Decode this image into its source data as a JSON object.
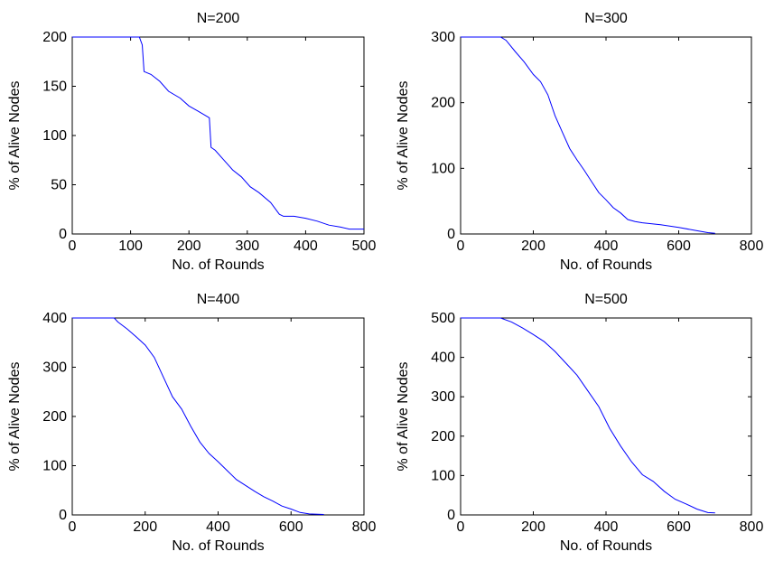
{
  "figure": {
    "background": "#ffffff",
    "line_color": "#0000ff",
    "axis_color": "#000000"
  },
  "chart_data": [
    {
      "type": "line",
      "title": "N=200",
      "xlabel": "No. of Rounds",
      "ylabel": "% of Alive Nodes",
      "xlim": [
        0,
        500
      ],
      "ylim": [
        0,
        200
      ],
      "xticks": [
        0,
        100,
        200,
        300,
        400,
        500
      ],
      "yticks": [
        0,
        50,
        100,
        150,
        200
      ],
      "grid": false,
      "series": [
        {
          "x": [
            0,
            115,
            120,
            123,
            135,
            150,
            165,
            185,
            200,
            215,
            235,
            238,
            245,
            260,
            275,
            290,
            305,
            320,
            340,
            355,
            362,
            380,
            400,
            420,
            440,
            460,
            475,
            500
          ],
          "y": [
            200,
            200,
            192,
            165,
            162,
            155,
            145,
            138,
            130,
            125,
            118,
            88,
            85,
            75,
            65,
            58,
            48,
            42,
            32,
            20,
            18,
            18,
            16,
            13,
            9,
            7,
            5,
            5
          ]
        }
      ]
    },
    {
      "type": "line",
      "title": "N=300",
      "xlabel": "No. of Rounds",
      "ylabel": "% of Alive Nodes",
      "xlim": [
        0,
        800
      ],
      "ylim": [
        0,
        300
      ],
      "xticks": [
        0,
        200,
        400,
        600,
        800
      ],
      "yticks": [
        0,
        100,
        200,
        300
      ],
      "grid": false,
      "series": [
        {
          "x": [
            0,
            110,
            125,
            150,
            175,
            200,
            220,
            240,
            260,
            280,
            300,
            320,
            340,
            360,
            380,
            400,
            420,
            440,
            460,
            480,
            500,
            550,
            600,
            650,
            680,
            700
          ],
          "y": [
            300,
            300,
            295,
            278,
            262,
            243,
            232,
            212,
            180,
            155,
            130,
            113,
            97,
            80,
            63,
            52,
            40,
            32,
            22,
            19,
            17,
            14,
            10,
            5,
            2,
            1
          ]
        }
      ]
    },
    {
      "type": "line",
      "title": "N=400",
      "xlabel": "No. of Rounds",
      "ylabel": "% of Alive Nodes",
      "xlim": [
        0,
        800
      ],
      "ylim": [
        0,
        400
      ],
      "xticks": [
        0,
        200,
        400,
        600,
        800
      ],
      "yticks": [
        0,
        100,
        200,
        300,
        400
      ],
      "grid": false,
      "series": [
        {
          "x": [
            0,
            115,
            125,
            150,
            175,
            200,
            225,
            250,
            275,
            300,
            325,
            350,
            375,
            400,
            425,
            450,
            475,
            500,
            525,
            550,
            575,
            600,
            625,
            650,
            690
          ],
          "y": [
            400,
            400,
            392,
            378,
            362,
            345,
            320,
            280,
            240,
            215,
            180,
            148,
            125,
            108,
            90,
            72,
            60,
            48,
            37,
            28,
            18,
            12,
            5,
            2,
            1
          ]
        }
      ]
    },
    {
      "type": "line",
      "title": "N=500",
      "xlabel": "No. of Rounds",
      "ylabel": "% of Alive Nodes",
      "xlim": [
        0,
        800
      ],
      "ylim": [
        0,
        500
      ],
      "xticks": [
        0,
        200,
        400,
        600,
        800
      ],
      "yticks": [
        0,
        100,
        200,
        300,
        400,
        500
      ],
      "grid": false,
      "series": [
        {
          "x": [
            0,
            110,
            140,
            170,
            200,
            230,
            260,
            290,
            320,
            350,
            380,
            410,
            440,
            470,
            500,
            530,
            560,
            590,
            620,
            650,
            680,
            700
          ],
          "y": [
            500,
            500,
            490,
            475,
            458,
            440,
            415,
            385,
            355,
            315,
            275,
            220,
            175,
            135,
            102,
            85,
            60,
            40,
            28,
            15,
            6,
            5
          ]
        }
      ]
    }
  ]
}
